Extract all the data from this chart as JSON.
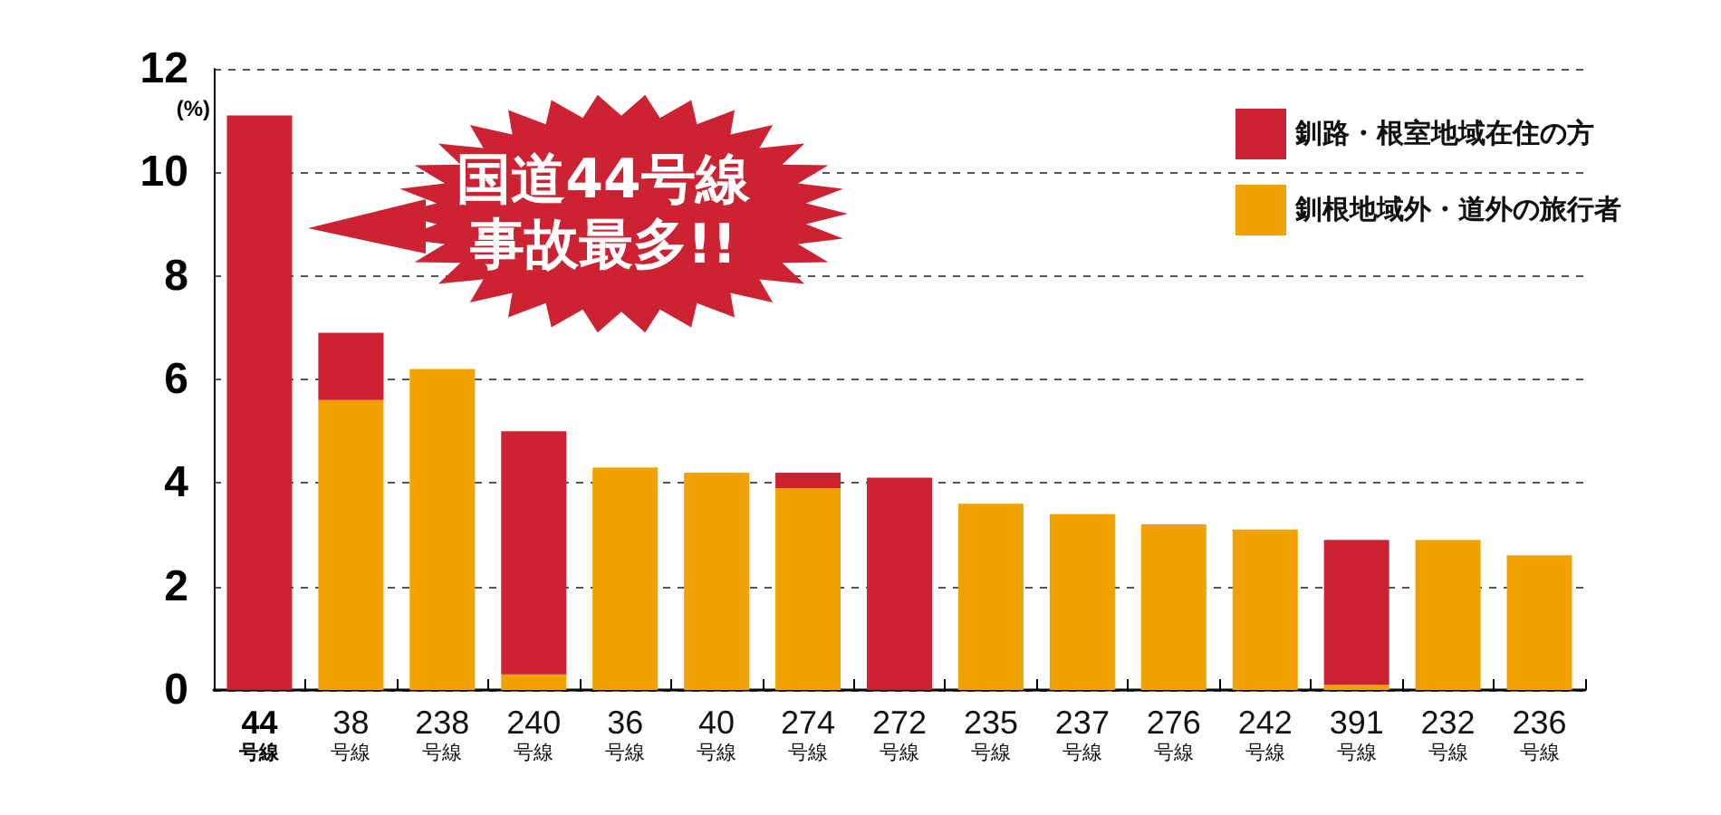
{
  "chart_data": {
    "type": "bar",
    "stacked": true,
    "ylabel": "(%)",
    "categories": [
      "44\n号線",
      "38\n号線",
      "238\n号線",
      "240\n号線",
      "36\n号線",
      "40\n号線",
      "274\n号線",
      "272\n号線",
      "235\n号線",
      "237\n号線",
      "276\n号線",
      "242\n号線",
      "391\n号線",
      "232\n号線",
      "236\n号線"
    ],
    "series": [
      {
        "name": "釧根地域外・道外の旅行者",
        "color": "#f2a200",
        "values": [
          0,
          5.6,
          6.2,
          0.3,
          4.3,
          4.2,
          3.9,
          0,
          3.6,
          3.4,
          3.2,
          3.1,
          0.1,
          2.9,
          2.6
        ]
      },
      {
        "name": "釧路・根室地域在住の方",
        "color": "#cc2231",
        "values": [
          11.1,
          1.3,
          0,
          4.7,
          0,
          0,
          0.3,
          4.1,
          0,
          0,
          0,
          0,
          2.8,
          0,
          0
        ]
      }
    ],
    "ylim": [
      0,
      12
    ],
    "yticks": [
      0,
      2,
      4,
      6,
      8,
      10,
      12
    ],
    "grid": "y",
    "legend": "top right",
    "annotations": [
      "国道44号線",
      "事故最多!!"
    ]
  }
}
